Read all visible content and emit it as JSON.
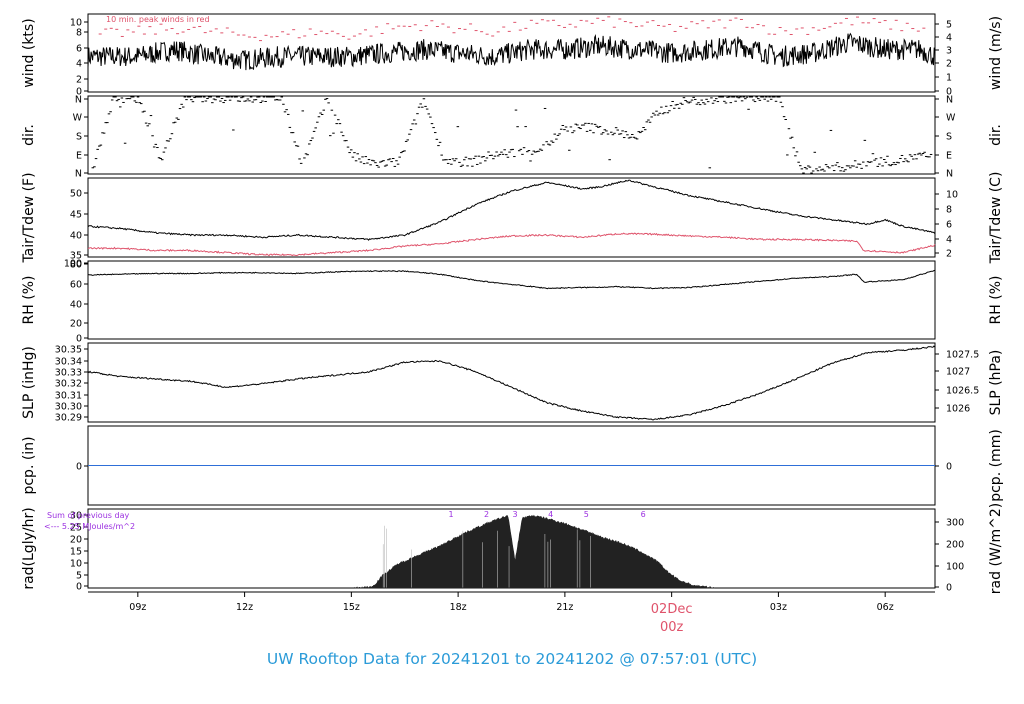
{
  "title": "UW Rooftop Data for 20241201  to  20241202 @ 07:57:01  (UTC)",
  "colors": {
    "title": "#2b9bd8",
    "accent": "#df536b",
    "purple": "#9b30e0",
    "pcp_line": "#2e6fd8",
    "axis": "#000000"
  },
  "annotations": {
    "peak_note": "10 min. peak winds in red",
    "rad_sum_line1": "Sum of previous day",
    "rad_sum_line2": "<--- 5.25 MJoules/m^2"
  },
  "time_axis": {
    "labels": [
      "09z",
      "12z",
      "15z",
      "18z",
      "21z",
      "00z",
      "03z",
      "06z"
    ],
    "date_marker": "02Dec",
    "date_marker_sub": "00z"
  },
  "chart_data": [
    {
      "type": "line",
      "key": "wind",
      "ylabel": "wind (kts)",
      "ylabel_right": "wind (m/s)",
      "ylim": [
        0,
        11
      ],
      "yticks": [
        "0",
        "2",
        "4",
        "6",
        "8",
        "10"
      ],
      "yticks_right": [
        "0",
        "1",
        "2",
        "3",
        "4",
        "5"
      ],
      "series": [
        {
          "name": "wind",
          "x": [
            7.6,
            9,
            10,
            11,
            12,
            13,
            14,
            15,
            16,
            17,
            18,
            19,
            20,
            21,
            22,
            23,
            24,
            25,
            26,
            27,
            28,
            29,
            30,
            31,
            31.4
          ],
          "y": [
            5,
            5,
            6,
            5,
            4.5,
            5,
            5,
            5,
            5.5,
            6,
            5.5,
            5,
            6,
            6,
            6.5,
            6,
            5.5,
            6,
            6.5,
            5,
            5.5,
            7,
            6,
            6,
            5
          ]
        },
        {
          "name": "peak",
          "x": [
            7.6,
            9,
            10,
            11,
            12,
            13,
            14,
            15,
            16,
            17,
            18,
            19,
            20,
            21,
            22,
            23,
            24,
            25,
            26,
            27,
            28,
            29,
            30,
            31,
            31.4
          ],
          "y": [
            8,
            8.5,
            9,
            8.5,
            8,
            8,
            8.5,
            8,
            9,
            9.5,
            9,
            8.5,
            9.5,
            9.5,
            10,
            9.5,
            9,
            9.5,
            10,
            8.5,
            9,
            10,
            9.5,
            9,
            8
          ]
        }
      ]
    },
    {
      "type": "scatter",
      "key": "dir",
      "ylabel": "dir.",
      "ylabel_right": "dir.",
      "ylim": [
        0,
        4
      ],
      "yticks": [
        "N",
        "E",
        "S",
        "W",
        "N"
      ],
      "series": [
        {
          "name": "direction",
          "x": [
            7.7,
            8.3,
            9,
            9.6,
            10.3,
            11,
            11.6,
            12.3,
            13,
            13.6,
            14.3,
            15,
            15.6,
            16.3,
            17,
            17.6,
            18.3,
            19,
            19.6,
            20.3,
            21,
            21.6,
            22.3,
            23,
            23.6,
            24.3,
            25,
            25.6,
            26.3,
            27,
            27.6,
            28.3,
            29,
            29.6,
            30.3,
            31,
            31.3
          ],
          "y": [
            0.3,
            3.9,
            3.9,
            0.7,
            3.9,
            3.9,
            3.9,
            3.9,
            3.9,
            0.5,
            3.9,
            0.9,
            0.5,
            0.6,
            3.8,
            0.7,
            0.6,
            1.0,
            1.1,
            1.3,
            2.3,
            2.4,
            2.2,
            1.9,
            3.2,
            3.7,
            3.8,
            3.9,
            3.9,
            3.9,
            0.2,
            0.3,
            0.4,
            0.6,
            0.7,
            0.9,
            0.9
          ]
        }
      ]
    },
    {
      "type": "line",
      "key": "temp",
      "ylabel": "Tair/Tdew (F)",
      "ylabel_right": "Tair/Tdew (C)",
      "ylim": [
        35,
        53
      ],
      "yticks": [
        "35",
        "40",
        "45",
        "50"
      ],
      "yticks_right": [
        "2",
        "4",
        "6",
        "8",
        "10"
      ],
      "series": [
        {
          "name": "Tair",
          "x": [
            7.6,
            8.5,
            9.5,
            10.5,
            11.5,
            12.5,
            13.5,
            14.5,
            15.5,
            16.5,
            17.5,
            18.5,
            19.5,
            20.5,
            21.5,
            22,
            22.8,
            23.5,
            24.5,
            25.5,
            26.5,
            27.5,
            28.5,
            29.5,
            30,
            30.5,
            31.4
          ],
          "y": [
            42,
            41.5,
            40.5,
            40,
            40,
            39.5,
            40,
            39.5,
            39,
            40,
            43,
            47,
            50,
            52,
            50.5,
            51,
            52.5,
            51,
            49,
            47.5,
            46,
            44.5,
            43.5,
            42.5,
            43.5,
            42,
            40.5
          ]
        },
        {
          "name": "Tdew",
          "x": [
            7.6,
            8.5,
            9.5,
            10.5,
            11.5,
            12.5,
            13.5,
            14.5,
            15.5,
            16.5,
            17.5,
            18.5,
            19.5,
            20.5,
            21.5,
            22.5,
            23.5,
            24.5,
            25.5,
            26.5,
            27.5,
            28.5,
            29.2,
            29.4,
            30.5,
            31.4
          ],
          "y": [
            37,
            37,
            36.5,
            36.5,
            36,
            35.5,
            35.5,
            36,
            36.5,
            37.5,
            38,
            39,
            39.8,
            40,
            39.5,
            40.3,
            40.2,
            39.8,
            39.5,
            39,
            39,
            38.8,
            38.6,
            36.5,
            36,
            37.7
          ]
        }
      ]
    },
    {
      "type": "line",
      "key": "rh",
      "ylabel": "RH (%)",
      "ylabel_right": "RH (%)",
      "ylim": [
        0,
        100
      ],
      "yticks": [
        "0",
        "20",
        "40",
        "60",
        "80",
        "100"
      ],
      "series": [
        {
          "name": "RH",
          "x": [
            7.6,
            8.5,
            9.5,
            10.5,
            11.5,
            12.5,
            13.5,
            14.5,
            15.5,
            16.5,
            17.5,
            18.5,
            19.5,
            20.5,
            21.5,
            22.5,
            23.5,
            24.5,
            25.5,
            26.5,
            27.5,
            28.5,
            29.2,
            29.4,
            30.5,
            31.4
          ],
          "y": [
            82,
            83,
            84,
            84,
            85,
            85,
            84,
            86,
            87,
            87,
            83,
            75,
            70,
            65,
            66,
            67,
            65,
            66,
            70,
            74,
            78,
            80,
            83,
            73,
            76,
            88
          ]
        }
      ]
    },
    {
      "type": "line",
      "key": "slp",
      "ylabel": "SLP (inHg)",
      "ylabel_right": "SLP (hPa)",
      "ylim": [
        30.286,
        30.352
      ],
      "yticks": [
        "30.29",
        "30.30",
        "30.31",
        "30.32",
        "30.33",
        "30.34",
        "30.35"
      ],
      "yticks_right": [
        "1026",
        "1026.5",
        "1027",
        "1027.5"
      ],
      "series": [
        {
          "name": "SLP",
          "x": [
            7.6,
            8.5,
            9.5,
            10.5,
            11.5,
            12.5,
            13.5,
            14.5,
            15.5,
            16.5,
            17.5,
            18.5,
            19.5,
            20.5,
            21.5,
            22.5,
            23.5,
            24.5,
            25.5,
            26.5,
            27.5,
            28.5,
            29.5,
            30.5,
            31.4
          ],
          "y": [
            30.328,
            30.324,
            30.322,
            30.32,
            30.315,
            30.318,
            30.322,
            30.325,
            30.328,
            30.336,
            30.337,
            30.328,
            30.315,
            30.302,
            30.295,
            30.29,
            30.288,
            30.292,
            30.3,
            30.31,
            30.322,
            30.335,
            30.344,
            30.346,
            30.349
          ]
        }
      ]
    },
    {
      "type": "line",
      "key": "pcp",
      "ylabel": "pcp. (in)",
      "ylabel_right": "pcp. (mm)",
      "ylim": [
        -1,
        1
      ],
      "yticks": [
        "0"
      ],
      "yticks_right": [
        "0"
      ],
      "series": [
        {
          "name": "pcp",
          "x": [
            7.6,
            31.4
          ],
          "y": [
            0,
            0
          ]
        }
      ]
    },
    {
      "type": "area",
      "key": "rad",
      "ylabel": "rad(Lgly/hr)",
      "ylabel_right": "rad (W/m^2)",
      "ylim": [
        0,
        30
      ],
      "yticks": [
        "0",
        "5",
        "10",
        "15",
        "20",
        "25",
        "30"
      ],
      "yticks_right": [
        "0",
        "100",
        "200",
        "300"
      ],
      "hour_labels": [
        {
          "label": "1",
          "x": 17.8
        },
        {
          "label": "2",
          "x": 18.8
        },
        {
          "label": "3",
          "x": 19.6
        },
        {
          "label": "4",
          "x": 20.6
        },
        {
          "label": "5",
          "x": 21.6
        },
        {
          "label": "6",
          "x": 23.2
        }
      ],
      "series": [
        {
          "name": "radiation",
          "x": [
            15.1,
            15.6,
            15.9,
            16.3,
            16.8,
            17.5,
            18.2,
            18.9,
            19.4,
            19.6,
            19.8,
            20.1,
            20.6,
            21.1,
            21.6,
            22.1,
            22.6,
            23.1,
            23.6,
            23.9,
            24.2,
            24.6,
            25.2
          ],
          "y": [
            0,
            0.5,
            5,
            9,
            12,
            16,
            21,
            25,
            27.5,
            10,
            26.5,
            27.5,
            26,
            24,
            21.5,
            19,
            17,
            14,
            10,
            6,
            3,
            1,
            0
          ]
        }
      ]
    }
  ]
}
